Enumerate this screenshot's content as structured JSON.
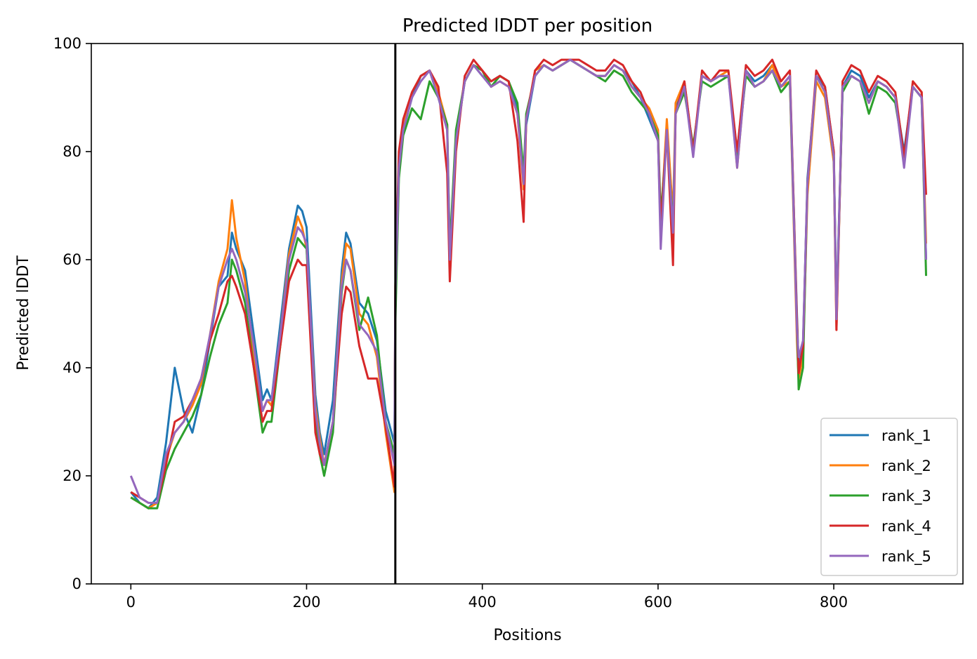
{
  "chart_data": {
    "type": "line",
    "title": "Predicted lDDT per position",
    "xlabel": "Positions",
    "ylabel": "Predicted lDDT",
    "xlim": [
      -45,
      947
    ],
    "ylim": [
      0,
      100
    ],
    "xticks": [
      0,
      200,
      400,
      600,
      800
    ],
    "yticks": [
      0,
      20,
      40,
      60,
      80,
      100
    ],
    "grid": false,
    "legend": "lower-right",
    "vline": {
      "x": 301,
      "color": "#000000"
    },
    "x": [
      0,
      10,
      20,
      30,
      40,
      50,
      60,
      70,
      80,
      90,
      100,
      110,
      115,
      120,
      130,
      140,
      150,
      155,
      160,
      170,
      180,
      190,
      195,
      200,
      210,
      215,
      220,
      230,
      240,
      245,
      250,
      260,
      270,
      280,
      290,
      300,
      301,
      305,
      310,
      320,
      330,
      340,
      350,
      360,
      363,
      370,
      380,
      390,
      400,
      410,
      420,
      430,
      440,
      447,
      450,
      460,
      470,
      480,
      490,
      500,
      510,
      520,
      530,
      540,
      550,
      560,
      570,
      580,
      590,
      600,
      603,
      610,
      617,
      620,
      630,
      640,
      650,
      660,
      670,
      680,
      690,
      700,
      710,
      720,
      730,
      740,
      750,
      758,
      760,
      765,
      770,
      780,
      790,
      800,
      803,
      810,
      820,
      830,
      840,
      850,
      860,
      870,
      880,
      890,
      900,
      905
    ],
    "series": [
      {
        "name": "rank_1",
        "color": "#1f77b4",
        "values": [
          17,
          15,
          14,
          16,
          26,
          40,
          32,
          28,
          35,
          45,
          55,
          57,
          65,
          62,
          58,
          46,
          34,
          36,
          34,
          48,
          62,
          70,
          69,
          66,
          35,
          28,
          24,
          34,
          58,
          65,
          63,
          52,
          50,
          45,
          32,
          26,
          50,
          76,
          84,
          90,
          94,
          95,
          90,
          84,
          60,
          82,
          93,
          96,
          94,
          93,
          94,
          93,
          88,
          75,
          85,
          94,
          96,
          95,
          96,
          97,
          96,
          95,
          94,
          94,
          96,
          95,
          93,
          90,
          86,
          82,
          65,
          84,
          66,
          88,
          92,
          80,
          94,
          93,
          94,
          94,
          80,
          95,
          93,
          94,
          96,
          92,
          94,
          50,
          40,
          44,
          75,
          94,
          92,
          80,
          50,
          92,
          95,
          94,
          90,
          93,
          92,
          90,
          80,
          92,
          90,
          60
        ]
      },
      {
        "name": "rank_2",
        "color": "#ff7f0e",
        "values": [
          16,
          15,
          14,
          15,
          23,
          28,
          30,
          33,
          37,
          46,
          56,
          62,
          71,
          64,
          56,
          42,
          32,
          34,
          33,
          46,
          61,
          68,
          66,
          62,
          33,
          27,
          22,
          30,
          56,
          63,
          62,
          50,
          48,
          42,
          28,
          17,
          52,
          78,
          85,
          91,
          94,
          95,
          91,
          85,
          58,
          83,
          93,
          96,
          95,
          92,
          93,
          92,
          87,
          73,
          86,
          95,
          96,
          95,
          96,
          97,
          96,
          95,
          94,
          94,
          96,
          95,
          92,
          90,
          88,
          84,
          66,
          86,
          68,
          89,
          93,
          80,
          94,
          93,
          94,
          95,
          77,
          95,
          92,
          93,
          96,
          92,
          93,
          45,
          38,
          42,
          72,
          93,
          90,
          78,
          47,
          92,
          94,
          93,
          89,
          93,
          92,
          90,
          78,
          93,
          91,
          63
        ]
      },
      {
        "name": "rank_3",
        "color": "#2ca02c",
        "values": [
          16,
          15,
          14,
          14,
          21,
          25,
          28,
          31,
          35,
          42,
          48,
          52,
          60,
          58,
          52,
          40,
          28,
          30,
          30,
          44,
          58,
          64,
          63,
          62,
          30,
          24,
          20,
          28,
          54,
          60,
          58,
          47,
          53,
          46,
          30,
          24,
          48,
          75,
          83,
          88,
          86,
          93,
          90,
          85,
          62,
          84,
          93,
          96,
          95,
          92,
          94,
          93,
          89,
          76,
          87,
          94,
          96,
          95,
          96,
          97,
          96,
          95,
          94,
          93,
          95,
          94,
          91,
          89,
          87,
          83,
          68,
          83,
          66,
          87,
          91,
          81,
          93,
          92,
          93,
          94,
          79,
          94,
          92,
          93,
          95,
          91,
          93,
          48,
          36,
          40,
          74,
          94,
          91,
          79,
          49,
          91,
          94,
          93,
          87,
          92,
          91,
          89,
          79,
          92,
          90,
          57
        ]
      },
      {
        "name": "rank_4",
        "color": "#d62728",
        "values": [
          17,
          16,
          15,
          15,
          22,
          30,
          31,
          34,
          38,
          45,
          50,
          56,
          57,
          55,
          50,
          40,
          30,
          32,
          32,
          44,
          56,
          60,
          59,
          59,
          28,
          24,
          22,
          30,
          50,
          55,
          54,
          44,
          38,
          38,
          29,
          18,
          55,
          80,
          86,
          91,
          94,
          95,
          92,
          76,
          56,
          80,
          94,
          97,
          95,
          93,
          94,
          93,
          82,
          67,
          86,
          95,
          97,
          96,
          97,
          97,
          97,
          96,
          95,
          95,
          97,
          96,
          93,
          91,
          87,
          82,
          66,
          84,
          59,
          87,
          93,
          80,
          95,
          93,
          95,
          95,
          80,
          96,
          94,
          95,
          97,
          93,
          95,
          49,
          39,
          44,
          74,
          95,
          92,
          80,
          47,
          93,
          96,
          95,
          91,
          94,
          93,
          91,
          79,
          93,
          91,
          72
        ]
      },
      {
        "name": "rank_5",
        "color": "#9467bd",
        "values": [
          20,
          16,
          15,
          15,
          24,
          28,
          30,
          34,
          38,
          46,
          55,
          60,
          62,
          60,
          54,
          44,
          32,
          34,
          34,
          46,
          60,
          66,
          65,
          63,
          32,
          26,
          22,
          30,
          55,
          60,
          58,
          48,
          46,
          43,
          30,
          22,
          53,
          77,
          84,
          90,
          93,
          95,
          90,
          84,
          60,
          82,
          93,
          96,
          94,
          92,
          93,
          92,
          87,
          74,
          86,
          94,
          96,
          95,
          96,
          97,
          96,
          95,
          94,
          94,
          96,
          95,
          92,
          90,
          87,
          82,
          62,
          84,
          65,
          87,
          92,
          79,
          94,
          93,
          94,
          94,
          77,
          95,
          92,
          93,
          95,
          92,
          94,
          47,
          42,
          45,
          74,
          94,
          91,
          79,
          49,
          92,
          94,
          93,
          89,
          93,
          92,
          90,
          77,
          92,
          90,
          60
        ]
      }
    ]
  }
}
